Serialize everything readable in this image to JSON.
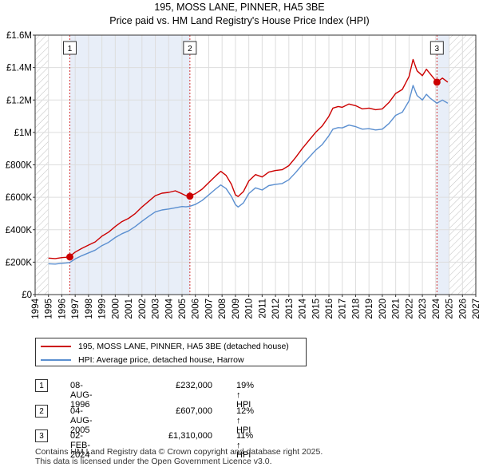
{
  "title": "195, MOSS LANE, PINNER, HA5 3BE",
  "subtitle": "Price paid vs. HM Land Registry's House Price Index (HPI)",
  "colors": {
    "property": "#cc0000",
    "hpi": "#5b8fd0",
    "grid": "#dddddd",
    "shade": "#e8eef8",
    "hatch": "#c0c0c0"
  },
  "chart_data": {
    "type": "line",
    "title": "195, MOSS LANE, PINNER, HA5 3BE",
    "subtitle": "Price paid vs. HM Land Registry's House Price Index (HPI)",
    "xlim": [
      1994,
      2027
    ],
    "ylim": [
      0,
      1600000
    ],
    "y_ticks": [
      {
        "value": 0,
        "label": "£0"
      },
      {
        "value": 200000,
        "label": "£200K"
      },
      {
        "value": 400000,
        "label": "£400K"
      },
      {
        "value": 600000,
        "label": "£600K"
      },
      {
        "value": 800000,
        "label": "£800K"
      },
      {
        "value": 1000000,
        "label": "£1M"
      },
      {
        "value": 1200000,
        "label": "£1.2M"
      },
      {
        "value": 1400000,
        "label": "£1.4M"
      },
      {
        "value": 1600000,
        "label": "£1.6M"
      }
    ],
    "x_ticks": [
      "1994",
      "1995",
      "1996",
      "1997",
      "1998",
      "1999",
      "2000",
      "2001",
      "2002",
      "2003",
      "2004",
      "2005",
      "2006",
      "2007",
      "2008",
      "2009",
      "2010",
      "2011",
      "2012",
      "2013",
      "2014",
      "2015",
      "2016",
      "2017",
      "2018",
      "2019",
      "2020",
      "2021",
      "2022",
      "2023",
      "2024",
      "2025",
      "2026",
      "2027"
    ],
    "data_range": [
      1995,
      2025
    ],
    "series": [
      {
        "name": "195, MOSS LANE, PINNER, HA5 3BE (detached house)",
        "x": [
          1995.0,
          1995.5,
          1996.0,
          1996.3,
          1996.6,
          1997.0,
          1997.5,
          1998.0,
          1998.5,
          1999.0,
          1999.5,
          2000.0,
          2000.5,
          2001.0,
          2001.5,
          2002.0,
          2002.5,
          2003.0,
          2003.5,
          2004.0,
          2004.5,
          2005.0,
          2005.3,
          2005.6,
          2006.0,
          2006.5,
          2007.0,
          2007.5,
          2007.9,
          2008.3,
          2008.7,
          2009.0,
          2009.2,
          2009.6,
          2010.0,
          2010.5,
          2011.0,
          2011.5,
          2012.0,
          2012.5,
          2013.0,
          2013.5,
          2014.0,
          2014.5,
          2015.0,
          2015.5,
          2016.0,
          2016.3,
          2016.7,
          2017.0,
          2017.5,
          2018.0,
          2018.5,
          2019.0,
          2019.5,
          2020.0,
          2020.5,
          2021.0,
          2021.5,
          2022.0,
          2022.3,
          2022.6,
          2023.0,
          2023.3,
          2023.6,
          2024.09,
          2024.5,
          2024.9
        ],
        "values": [
          225000,
          222000,
          228000,
          230000,
          236000,
          262000,
          285000,
          305000,
          325000,
          360000,
          385000,
          420000,
          450000,
          470000,
          500000,
          540000,
          575000,
          610000,
          625000,
          630000,
          640000,
          622000,
          610000,
          610000,
          622000,
          650000,
          690000,
          730000,
          760000,
          735000,
          680000,
          615000,
          605000,
          635000,
          700000,
          740000,
          725000,
          755000,
          765000,
          770000,
          795000,
          845000,
          900000,
          950000,
          1000000,
          1040000,
          1100000,
          1150000,
          1160000,
          1155000,
          1175000,
          1165000,
          1145000,
          1150000,
          1140000,
          1145000,
          1185000,
          1240000,
          1265000,
          1345000,
          1450000,
          1380000,
          1350000,
          1390000,
          1360000,
          1310000,
          1335000,
          1310000
        ]
      },
      {
        "name": "HPI: Average price, detached house, Harrow",
        "x": [
          1995.0,
          1995.5,
          1996.0,
          1996.3,
          1996.6,
          1997.0,
          1997.5,
          1998.0,
          1998.5,
          1999.0,
          1999.5,
          2000.0,
          2000.5,
          2001.0,
          2001.5,
          2002.0,
          2002.5,
          2003.0,
          2003.5,
          2004.0,
          2004.5,
          2005.0,
          2005.3,
          2005.6,
          2006.0,
          2006.5,
          2007.0,
          2007.5,
          2007.9,
          2008.3,
          2008.7,
          2009.0,
          2009.2,
          2009.6,
          2010.0,
          2010.5,
          2011.0,
          2011.5,
          2012.0,
          2012.5,
          2013.0,
          2013.5,
          2014.0,
          2014.5,
          2015.0,
          2015.5,
          2016.0,
          2016.3,
          2016.7,
          2017.0,
          2017.5,
          2018.0,
          2018.5,
          2019.0,
          2019.5,
          2020.0,
          2020.5,
          2021.0,
          2021.5,
          2022.0,
          2022.3,
          2022.6,
          2023.0,
          2023.3,
          2023.6,
          2024.09,
          2024.5,
          2024.9
        ],
        "values": [
          190000,
          188000,
          193000,
          195000,
          198000,
          220000,
          240000,
          257000,
          274000,
          302000,
          322000,
          352000,
          375000,
          393000,
          420000,
          452000,
          482000,
          510000,
          522000,
          528000,
          535000,
          543000,
          541000,
          545000,
          556000,
          580000,
          615000,
          650000,
          676000,
          654000,
          605000,
          555000,
          540000,
          565000,
          623000,
          658000,
          645000,
          672000,
          680000,
          685000,
          708000,
          752000,
          800000,
          845000,
          890000,
          925000,
          980000,
          1020000,
          1030000,
          1028000,
          1045000,
          1036000,
          1020000,
          1023000,
          1015000,
          1020000,
          1055000,
          1105000,
          1125000,
          1195000,
          1290000,
          1228000,
          1200000,
          1235000,
          1210000,
          1180000,
          1200000,
          1180000
        ]
      }
    ],
    "transactions": [
      {
        "id": "1",
        "x": 1996.6,
        "value": 232000
      },
      {
        "id": "2",
        "x": 2005.59,
        "value": 607000
      },
      {
        "id": "3",
        "x": 2024.09,
        "value": 1310000
      }
    ]
  },
  "legend": {
    "property": "195, MOSS LANE, PINNER, HA5 3BE (detached house)",
    "hpi": "HPI: Average price, detached house, Harrow"
  },
  "transactions": [
    {
      "id": "1",
      "date": "08-AUG-1996",
      "price": "£232,000",
      "hpi": "19% ↑ HPI"
    },
    {
      "id": "2",
      "date": "04-AUG-2005",
      "price": "£607,000",
      "hpi": "12% ↑ HPI"
    },
    {
      "id": "3",
      "date": "02-FEB-2024",
      "price": "£1,310,000",
      "hpi": "11% ↑ HPI"
    }
  ],
  "footer": {
    "line1": "Contains HM Land Registry data © Crown copyright and database right 2025.",
    "line2": "This data is licensed under the Open Government Licence v3.0."
  }
}
